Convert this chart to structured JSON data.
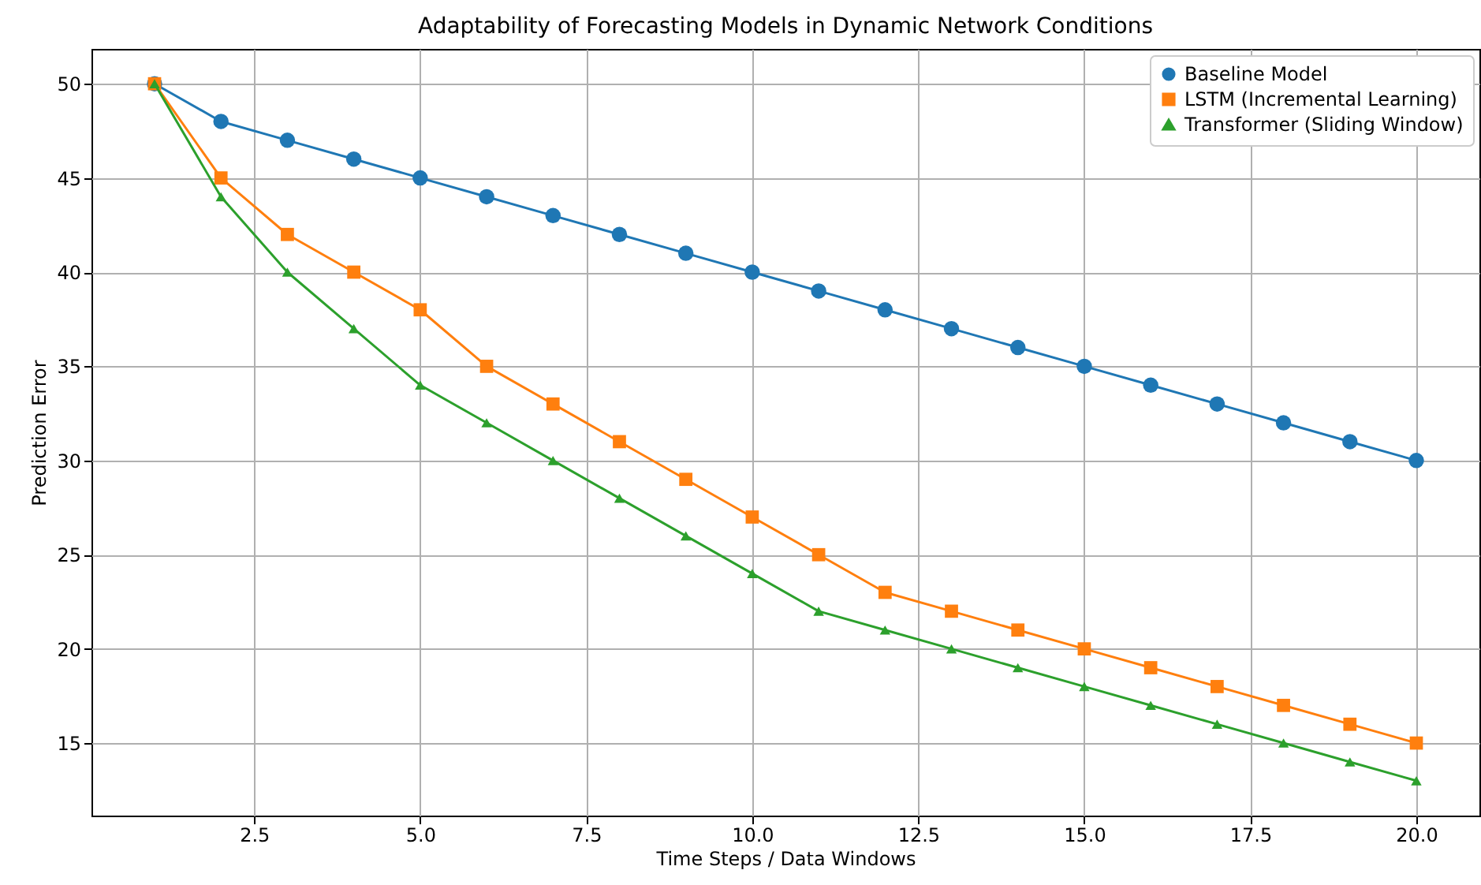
{
  "chart_data": {
    "type": "line",
    "title": "Adaptability of Forecasting Models in Dynamic Network Conditions",
    "xlabel": "Time Steps / Data Windows",
    "ylabel": "Prediction Error",
    "x": [
      1,
      2,
      3,
      4,
      5,
      6,
      7,
      8,
      9,
      10,
      11,
      12,
      13,
      14,
      15,
      16,
      17,
      18,
      19,
      20
    ],
    "series": [
      {
        "name": "Baseline Model",
        "color": "#1f77b4",
        "marker": "circle",
        "values": [
          50,
          48,
          47,
          46,
          45,
          44,
          43,
          42,
          41,
          40,
          39,
          38,
          37,
          36,
          35,
          34,
          33,
          32,
          31,
          30
        ]
      },
      {
        "name": "LSTM (Incremental Learning)",
        "color": "#ff7f0e",
        "marker": "square",
        "values": [
          50,
          45,
          42,
          40,
          38,
          35,
          33,
          31,
          29,
          27,
          25,
          23,
          22,
          21,
          20,
          19,
          18,
          17,
          16,
          15
        ]
      },
      {
        "name": "Transformer (Sliding Window)",
        "color": "#2ca02c",
        "marker": "triangle",
        "values": [
          50,
          44,
          40,
          37,
          34,
          32,
          30,
          28,
          26,
          24,
          22,
          21,
          20,
          19,
          18,
          17,
          16,
          15,
          14,
          13
        ]
      }
    ],
    "xlim": [
      0.05,
      20.95
    ],
    "ylim": [
      11.15,
      51.85
    ],
    "xticks": [
      {
        "value": 2.5,
        "label": "2.5"
      },
      {
        "value": 5,
        "label": "5.0"
      },
      {
        "value": 7.5,
        "label": "7.5"
      },
      {
        "value": 10,
        "label": "10.0"
      },
      {
        "value": 12.5,
        "label": "12.5"
      },
      {
        "value": 15,
        "label": "15.0"
      },
      {
        "value": 17.5,
        "label": "17.5"
      },
      {
        "value": 20,
        "label": "20.0"
      }
    ],
    "yticks": [
      15,
      20,
      25,
      30,
      35,
      40,
      45,
      50
    ],
    "grid": true,
    "legend": "top right",
    "line_style": "solid"
  }
}
